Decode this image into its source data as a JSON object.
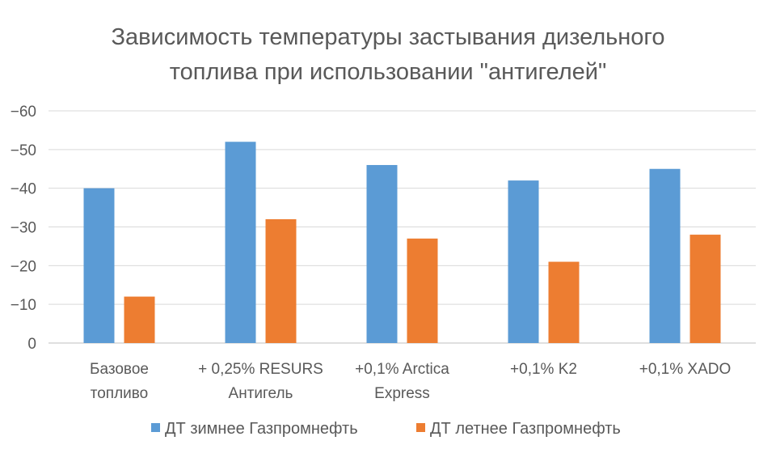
{
  "chart_data": {
    "type": "bar",
    "title_lines": [
      "Зависимость температуры застывания дизельного",
      "топлива при использовании \"антигелей\""
    ],
    "categories": [
      [
        "Базовое",
        "топливо"
      ],
      [
        "+ 0,25% RESURS",
        "Антигель"
      ],
      [
        "+0,1% Arctica",
        "Express"
      ],
      [
        "+0,1% K2"
      ],
      [
        "+0,1% XADO"
      ]
    ],
    "series": [
      {
        "name": "ДТ зимнее Газпромнефть",
        "color": "#5b9bd5",
        "values": [
          -40,
          -52,
          -46,
          -42,
          -45
        ]
      },
      {
        "name": "ДТ летнее Газпромнефть",
        "color": "#ed7d31",
        "values": [
          -12,
          -32,
          -27,
          -21,
          -28
        ]
      }
    ],
    "y_ticks": [
      0,
      -10,
      -20,
      -30,
      -40,
      -50,
      -60
    ],
    "y_tick_labels": [
      "0",
      "−10",
      "−20",
      "−30",
      "−40",
      "−50",
      "−60"
    ],
    "ylim": [
      0,
      -60
    ],
    "y_axis_inverted": true,
    "grid": true,
    "legend_position": "bottom",
    "xlabel": "",
    "ylabel": ""
  }
}
